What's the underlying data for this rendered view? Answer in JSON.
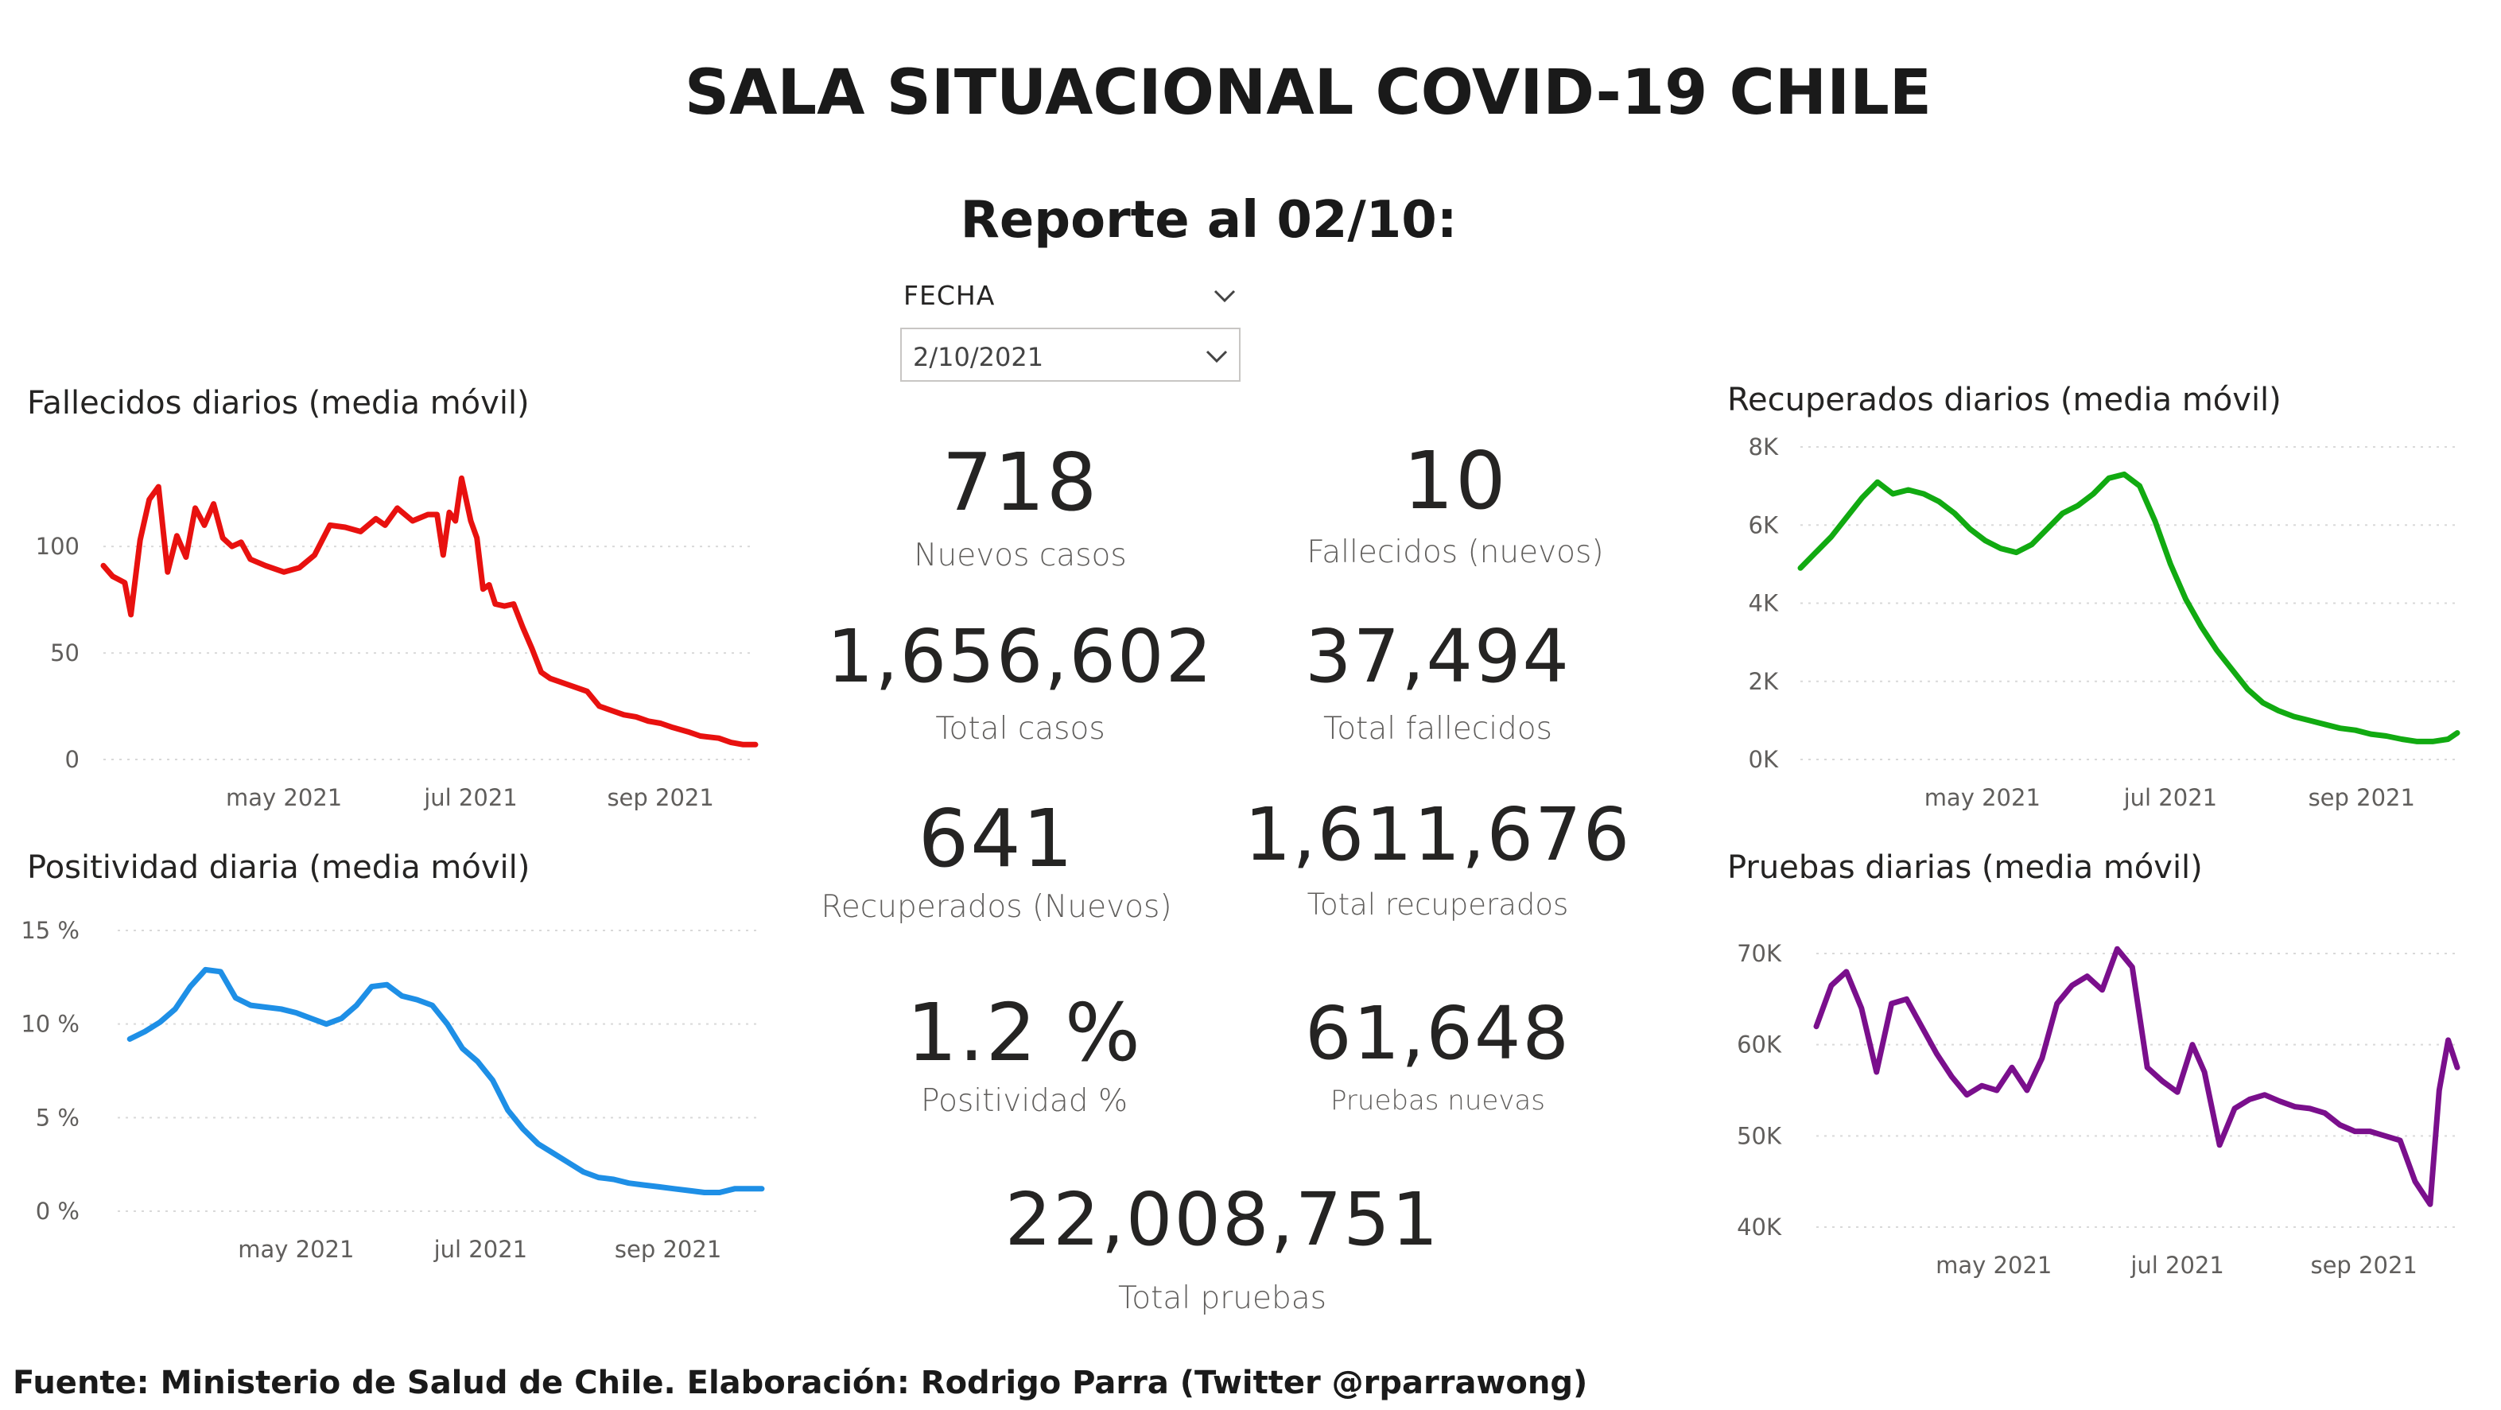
{
  "header": {
    "title": "SALA SITUACIONAL COVID-19 CHILE",
    "report_label": "Reporte al 02/10:"
  },
  "filter": {
    "label": "FECHA",
    "selected_value": "2/10/2021"
  },
  "kpis": [
    {
      "value": "718",
      "label": "Nuevos casos"
    },
    {
      "value": "10",
      "label": "Fallecidos (nuevos)"
    },
    {
      "value": "1,656,602",
      "label": "Total casos"
    },
    {
      "value": "37,494",
      "label": "Total fallecidos"
    },
    {
      "value": "641",
      "label": "Recuperados (Nuevos)"
    },
    {
      "value": "1,611,676",
      "label": "Total recuperados"
    },
    {
      "value": "1.2 %",
      "label": "Positividad %"
    },
    {
      "value": "61,648",
      "label": "Pruebas nuevas"
    },
    {
      "value": "22,008,751",
      "label": "Total pruebas"
    }
  ],
  "footer": {
    "source": "Fuente: Ministerio de Salud de Chile. Elaboración: Rodrigo Parra (Twitter @rparrawong)"
  },
  "colors": {
    "fallecidos": "#e8110f",
    "positividad": "#1e8fe6",
    "recuperados": "#11aa11",
    "pruebas": "#7a0f8c",
    "gridline": "#d9d9d9"
  },
  "chart_data": [
    {
      "id": "fallecidos",
      "type": "line",
      "title": "Fallecidos diarios (media móvil)",
      "x_ticks": [
        "may 2021",
        "jul 2021",
        "sep 2021"
      ],
      "x_tick_dates": [
        "2021-05-01",
        "2021-07-01",
        "2021-09-01"
      ],
      "xlim": [
        "2021-03-03",
        "2021-10-02"
      ],
      "ylim": [
        0,
        140
      ],
      "y_ticks": [
        0,
        50,
        100
      ],
      "y_tick_labels": [
        "0",
        "50",
        "100"
      ],
      "grid": true,
      "x": [
        "2021-03-03",
        "2021-03-06",
        "2021-03-10",
        "2021-03-12",
        "2021-03-15",
        "2021-03-18",
        "2021-03-21",
        "2021-03-24",
        "2021-03-27",
        "2021-03-30",
        "2021-04-02",
        "2021-04-05",
        "2021-04-08",
        "2021-04-11",
        "2021-04-14",
        "2021-04-17",
        "2021-04-20",
        "2021-04-25",
        "2021-05-01",
        "2021-05-06",
        "2021-05-11",
        "2021-05-16",
        "2021-05-21",
        "2021-05-26",
        "2021-05-31",
        "2021-06-03",
        "2021-06-07",
        "2021-06-12",
        "2021-06-17",
        "2021-06-20",
        "2021-06-22",
        "2021-06-24",
        "2021-06-26",
        "2021-06-28",
        "2021-07-01",
        "2021-07-03",
        "2021-07-05",
        "2021-07-07",
        "2021-07-09",
        "2021-07-12",
        "2021-07-15",
        "2021-07-18",
        "2021-07-21",
        "2021-07-24",
        "2021-07-27",
        "2021-07-31",
        "2021-08-04",
        "2021-08-08",
        "2021-08-12",
        "2021-08-16",
        "2021-08-20",
        "2021-08-24",
        "2021-08-28",
        "2021-09-01",
        "2021-09-05",
        "2021-09-10",
        "2021-09-14",
        "2021-09-20",
        "2021-09-24",
        "2021-09-28",
        "2021-10-02"
      ],
      "series": [
        {
          "values": [
            91,
            86,
            83,
            68,
            103,
            122,
            128,
            88,
            105,
            95,
            118,
            110,
            120,
            104,
            100,
            102,
            94,
            91,
            88,
            90,
            96,
            110,
            109,
            107,
            113,
            110,
            118,
            112,
            115,
            115,
            96,
            116,
            112,
            132,
            112,
            104,
            80,
            82,
            73,
            72,
            73,
            62,
            52,
            41,
            38,
            36,
            34,
            32,
            25,
            23,
            21,
            20,
            18,
            17,
            15,
            13,
            11,
            10,
            8,
            7,
            7
          ]
        }
      ]
    },
    {
      "id": "positividad",
      "type": "line",
      "title": "Positividad diaria (media móvil)",
      "x_ticks": [
        "may 2021",
        "jul 2021",
        "sep 2021"
      ],
      "x_tick_dates": [
        "2021-05-01",
        "2021-07-01",
        "2021-09-01"
      ],
      "xlim": [
        "2021-03-03",
        "2021-10-02"
      ],
      "ylim": [
        0,
        15
      ],
      "y_ticks": [
        0,
        5,
        10,
        15
      ],
      "y_tick_labels": [
        "0 %",
        "5 %",
        "10 %",
        "15 %"
      ],
      "grid": true,
      "x": [
        "2021-03-07",
        "2021-03-12",
        "2021-03-17",
        "2021-03-22",
        "2021-03-27",
        "2021-04-01",
        "2021-04-06",
        "2021-04-11",
        "2021-04-16",
        "2021-04-21",
        "2021-04-26",
        "2021-05-01",
        "2021-05-06",
        "2021-05-11",
        "2021-05-16",
        "2021-05-21",
        "2021-05-26",
        "2021-05-31",
        "2021-06-05",
        "2021-06-10",
        "2021-06-15",
        "2021-06-20",
        "2021-06-25",
        "2021-06-30",
        "2021-07-05",
        "2021-07-10",
        "2021-07-15",
        "2021-07-20",
        "2021-07-25",
        "2021-07-30",
        "2021-08-04",
        "2021-08-09",
        "2021-08-14",
        "2021-08-19",
        "2021-08-24",
        "2021-08-29",
        "2021-09-03",
        "2021-09-08",
        "2021-09-13",
        "2021-09-18",
        "2021-09-23",
        "2021-09-28",
        "2021-10-02"
      ],
      "series": [
        {
          "values": [
            9.2,
            9.6,
            10.1,
            10.8,
            12.0,
            12.9,
            12.8,
            11.4,
            11.0,
            10.9,
            10.8,
            10.6,
            10.3,
            10.0,
            10.3,
            11.0,
            12.0,
            12.1,
            11.5,
            11.3,
            11.0,
            10.0,
            8.7,
            8.0,
            7.0,
            5.4,
            4.4,
            3.6,
            3.1,
            2.6,
            2.1,
            1.8,
            1.7,
            1.5,
            1.4,
            1.3,
            1.2,
            1.1,
            1.0,
            1.0,
            1.2,
            1.2,
            1.2
          ]
        }
      ]
    },
    {
      "id": "recuperados",
      "type": "line",
      "title": "Recuperados diarios (media móvil)",
      "x_ticks": [
        "may 2021",
        "jul 2021",
        "sep 2021"
      ],
      "x_tick_dates": [
        "2021-05-01",
        "2021-07-01",
        "2021-09-01"
      ],
      "xlim": [
        "2021-03-03",
        "2021-10-02"
      ],
      "ylim": [
        0,
        8000
      ],
      "y_ticks": [
        0,
        2000,
        4000,
        6000,
        8000
      ],
      "y_tick_labels": [
        "0K",
        "2K",
        "4K",
        "6K",
        "8K"
      ],
      "grid": true,
      "x": [
        "2021-03-03",
        "2021-03-08",
        "2021-03-13",
        "2021-03-18",
        "2021-03-23",
        "2021-03-28",
        "2021-04-02",
        "2021-04-07",
        "2021-04-12",
        "2021-04-17",
        "2021-04-22",
        "2021-04-27",
        "2021-05-02",
        "2021-05-07",
        "2021-05-12",
        "2021-05-17",
        "2021-05-22",
        "2021-05-27",
        "2021-06-01",
        "2021-06-06",
        "2021-06-11",
        "2021-06-16",
        "2021-06-21",
        "2021-06-26",
        "2021-07-01",
        "2021-07-06",
        "2021-07-11",
        "2021-07-16",
        "2021-07-21",
        "2021-07-26",
        "2021-07-31",
        "2021-08-05",
        "2021-08-10",
        "2021-08-15",
        "2021-08-20",
        "2021-08-25",
        "2021-08-30",
        "2021-09-04",
        "2021-09-09",
        "2021-09-14",
        "2021-09-19",
        "2021-09-24",
        "2021-09-29",
        "2021-10-02"
      ],
      "series": [
        {
          "values": [
            4900,
            5300,
            5700,
            6200,
            6700,
            7100,
            6800,
            6900,
            6800,
            6600,
            6300,
            5900,
            5600,
            5400,
            5300,
            5500,
            5900,
            6300,
            6500,
            6800,
            7200,
            7300,
            7000,
            6100,
            5000,
            4100,
            3400,
            2800,
            2300,
            1800,
            1450,
            1250,
            1100,
            1000,
            900,
            800,
            750,
            650,
            600,
            520,
            460,
            460,
            520,
            680
          ]
        }
      ]
    },
    {
      "id": "pruebas",
      "type": "line",
      "title": "Pruebas diarias (media móvil)",
      "x_ticks": [
        "may 2021",
        "jul 2021",
        "sep 2021"
      ],
      "x_tick_dates": [
        "2021-05-01",
        "2021-07-01",
        "2021-09-01"
      ],
      "xlim": [
        "2021-03-03",
        "2021-10-02"
      ],
      "ylim": [
        40000,
        72000
      ],
      "y_ticks": [
        40000,
        50000,
        60000,
        70000
      ],
      "y_tick_labels": [
        "40K",
        "50K",
        "60K",
        "70K"
      ],
      "grid": true,
      "x": [
        "2021-03-03",
        "2021-03-08",
        "2021-03-13",
        "2021-03-18",
        "2021-03-23",
        "2021-03-28",
        "2021-04-02",
        "2021-04-07",
        "2021-04-12",
        "2021-04-17",
        "2021-04-22",
        "2021-04-27",
        "2021-05-02",
        "2021-05-07",
        "2021-05-12",
        "2021-05-17",
        "2021-05-22",
        "2021-05-27",
        "2021-06-01",
        "2021-06-06",
        "2021-06-11",
        "2021-06-16",
        "2021-06-21",
        "2021-06-26",
        "2021-07-01",
        "2021-07-06",
        "2021-07-10",
        "2021-07-15",
        "2021-07-20",
        "2021-07-25",
        "2021-07-30",
        "2021-08-04",
        "2021-08-09",
        "2021-08-14",
        "2021-08-19",
        "2021-08-24",
        "2021-08-29",
        "2021-09-03",
        "2021-09-08",
        "2021-09-13",
        "2021-09-18",
        "2021-09-23",
        "2021-09-26",
        "2021-09-29",
        "2021-10-02"
      ],
      "series": [
        {
          "values": [
            62000,
            66500,
            68000,
            64000,
            57000,
            64500,
            65000,
            62000,
            59000,
            56500,
            54500,
            55500,
            55000,
            57500,
            55000,
            58500,
            64500,
            66500,
            67500,
            66000,
            70500,
            68500,
            57500,
            56000,
            54800,
            60000,
            57000,
            49000,
            53000,
            54000,
            54500,
            53800,
            53200,
            53000,
            52500,
            51200,
            50500,
            50500,
            50000,
            49500,
            45000,
            42500,
            55000,
            60500,
            57500
          ]
        }
      ]
    }
  ]
}
